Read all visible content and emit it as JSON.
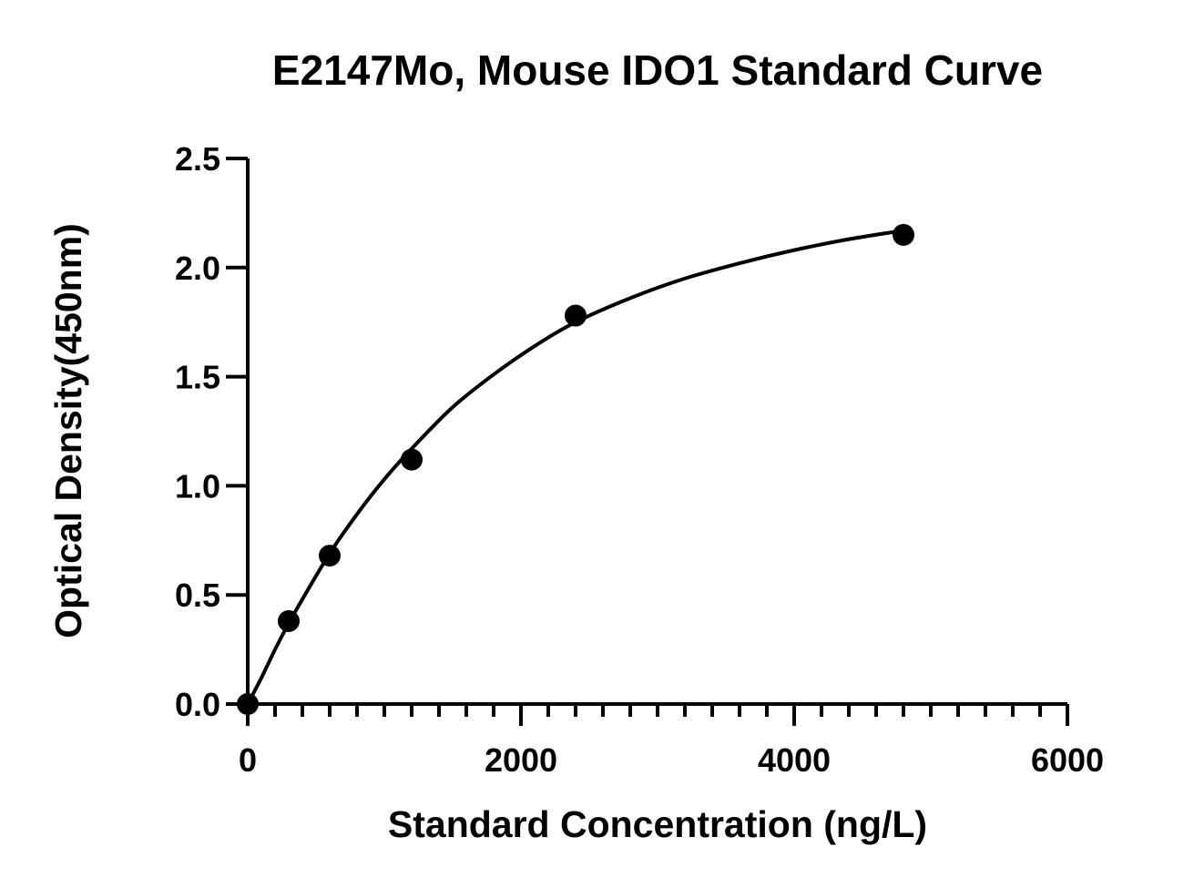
{
  "chart_data": {
    "type": "scatter",
    "title": "E2147Mo, Mouse IDO1 Standard Curve",
    "xlabel": "Standard Concentration (ng/L)",
    "ylabel": "Optical Density(450nm)",
    "xlim": [
      0,
      6000
    ],
    "ylim": [
      0,
      2.5
    ],
    "x_ticks": [
      0,
      2000,
      4000,
      6000
    ],
    "x_tick_labels": [
      "0",
      "2000",
      "4000",
      "6000"
    ],
    "x_minor_step": 200,
    "y_ticks": [
      0,
      0.5,
      1.0,
      1.5,
      2.0,
      2.5
    ],
    "y_tick_labels": [
      "0.0",
      "0.5",
      "1.0",
      "1.5",
      "2.0",
      "2.5"
    ],
    "grid": false,
    "legend": "none",
    "series": [
      {
        "x": [
          0,
          300,
          600,
          1200,
          2400,
          4800
        ],
        "y": [
          0.0,
          0.38,
          0.68,
          1.12,
          1.78,
          2.15
        ]
      }
    ],
    "fit_curve": {
      "x": [
        0,
        100,
        200,
        300,
        400,
        600,
        800,
        1000,
        1200,
        1500,
        1800,
        2100,
        2400,
        2800,
        3200,
        3600,
        4000,
        4400,
        4800
      ],
      "y": [
        0.0,
        0.12,
        0.25,
        0.37,
        0.48,
        0.69,
        0.87,
        1.03,
        1.17,
        1.36,
        1.51,
        1.64,
        1.75,
        1.86,
        1.95,
        2.02,
        2.08,
        2.13,
        2.17
      ]
    }
  }
}
